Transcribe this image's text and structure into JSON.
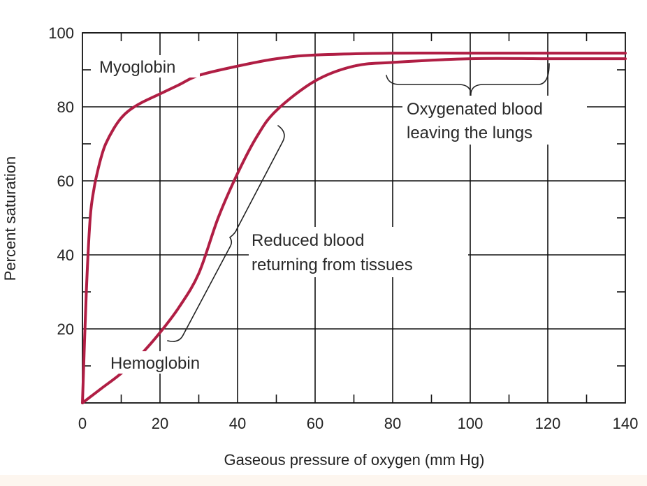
{
  "chart_data": {
    "type": "line",
    "xlabel": "Gaseous pressure of oxygen (mm Hg)",
    "ylabel": "Percent saturation",
    "xlim": [
      0,
      140
    ],
    "ylim": [
      0,
      100
    ],
    "x_ticks": [
      0,
      20,
      40,
      60,
      80,
      100,
      120,
      140
    ],
    "y_ticks": [
      20,
      40,
      60,
      80,
      100
    ],
    "grid": true,
    "series": [
      {
        "name": "Myoglobin",
        "x": [
          0,
          1,
          2,
          3,
          4,
          5,
          6,
          8,
          10,
          12,
          15,
          20,
          25,
          30,
          40,
          50,
          60,
          80,
          100,
          120,
          140
        ],
        "y": [
          0,
          30,
          50,
          58,
          63,
          67,
          70,
          74,
          77,
          79,
          81,
          83.5,
          86,
          88.5,
          91,
          93,
          94,
          94.5,
          94.5,
          94.5,
          94.5
        ]
      },
      {
        "name": "Hemoglobin",
        "x": [
          0,
          5,
          10,
          15,
          20,
          25,
          30,
          35,
          40,
          45,
          50,
          60,
          70,
          80,
          100,
          120,
          140
        ],
        "y": [
          0,
          4,
          8,
          13,
          19,
          26,
          35,
          50,
          62,
          72,
          79,
          87,
          91,
          92,
          93,
          93,
          93
        ]
      }
    ],
    "series_color": "#b01e44",
    "annotations": {
      "oxygenated": [
        "Oxygenated blood",
        "leaving the lungs"
      ],
      "reduced": [
        "Reduced blood",
        "returning from tissues"
      ]
    }
  }
}
